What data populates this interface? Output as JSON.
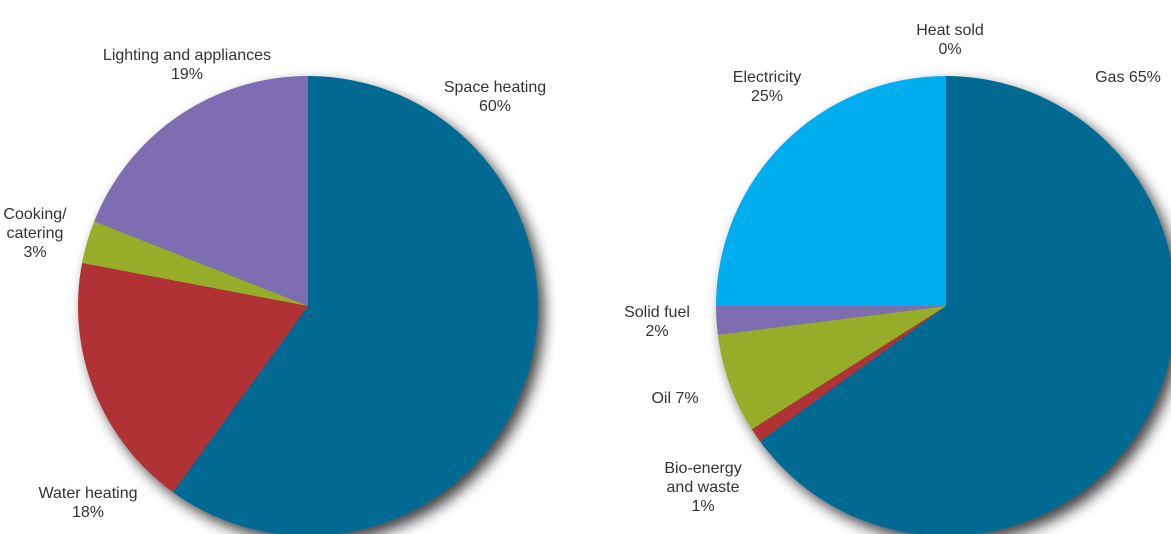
{
  "chart_data": [
    {
      "type": "pie",
      "title": "",
      "slices": [
        {
          "label": "Space heating",
          "value_text": "60%",
          "value": 60,
          "color": "#006A93"
        },
        {
          "label": "Water heating",
          "value_text": "18%",
          "value": 18,
          "color": "#B03035"
        },
        {
          "label": "Cooking/ catering",
          "value_text": "3%",
          "value": 3,
          "color": "#96AD2A"
        },
        {
          "label": "Lighting and appliances",
          "value_text": "19%",
          "value": 19,
          "color": "#7B6EB1"
        }
      ]
    },
    {
      "type": "pie",
      "title": "",
      "slices": [
        {
          "label": "Gas",
          "value_text": "65%",
          "value": 65,
          "color": "#006A93"
        },
        {
          "label": "Bio-energy and waste",
          "value_text": "1%",
          "value": 1,
          "color": "#B03035"
        },
        {
          "label": "Oil",
          "value_text": "7%",
          "value": 7,
          "color": "#96AD2A"
        },
        {
          "label": "Solid fuel",
          "value_text": "2%",
          "value": 2,
          "color": "#7B6EB1"
        },
        {
          "label": "Electricity",
          "value_text": "25%",
          "value": 25,
          "color": "#00AEEF"
        },
        {
          "label": "Heat sold",
          "value_text": "0%",
          "value": 0,
          "color": "#006A93"
        }
      ]
    }
  ],
  "labels": {
    "left": {
      "space_heating": {
        "line1": "Space heating",
        "line2": "60%"
      },
      "water_heating": {
        "line1": "Water heating",
        "line2": "18%"
      },
      "cooking": {
        "line1": "Cooking/",
        "line2": "catering",
        "line3": "3%"
      },
      "lighting": {
        "line1": "Lighting and appliances",
        "line2": "19%"
      }
    },
    "right": {
      "gas": {
        "line1": "Gas 65%"
      },
      "bio": {
        "line1": "Bio-energy",
        "line2": "and waste",
        "line3": "1%"
      },
      "oil": {
        "line1": "Oil 7%"
      },
      "solid": {
        "line1": "Solid fuel",
        "line2": "2%"
      },
      "electricity": {
        "line1": "Electricity",
        "line2": "25%"
      },
      "heat_sold": {
        "line1": "Heat sold",
        "line2": "0%"
      }
    }
  }
}
